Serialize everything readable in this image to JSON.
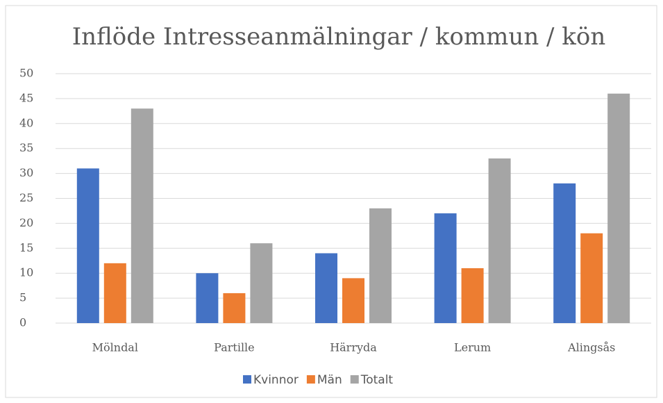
{
  "chart_data": {
    "type": "bar",
    "title": "Inflöde Intresseanmälningar / kommun / kön",
    "categories": [
      "Mölndal",
      "Partille",
      "Härryda",
      "Lerum",
      "Alingsås"
    ],
    "series": [
      {
        "name": "Kvinnor",
        "color": "#4472c4",
        "values": [
          31,
          10,
          14,
          22,
          28
        ]
      },
      {
        "name": "Män",
        "color": "#ed7d31",
        "values": [
          12,
          6,
          9,
          11,
          18
        ]
      },
      {
        "name": "Totalt",
        "color": "#a5a5a5",
        "values": [
          43,
          16,
          23,
          33,
          46
        ]
      }
    ],
    "ylim": [
      0,
      50
    ],
    "yticks": [
      0,
      5,
      10,
      15,
      20,
      25,
      30,
      35,
      40,
      45,
      50
    ],
    "grid": true
  }
}
